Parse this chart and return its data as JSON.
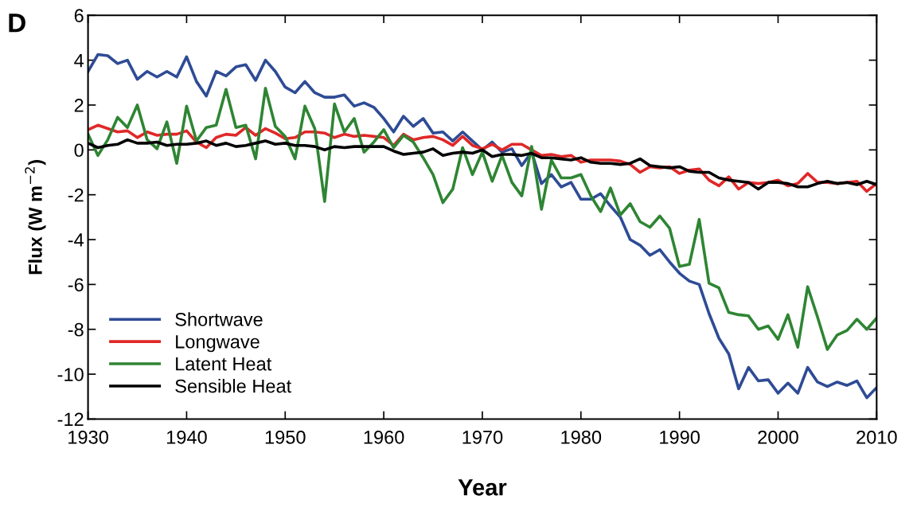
{
  "chart_data": {
    "type": "line",
    "xlabel": "Year",
    "ylabel": "Flux (W m$^{−2}$)",
    "annotations": [
      "D"
    ],
    "x": [
      1930,
      1931,
      1932,
      1933,
      1934,
      1935,
      1936,
      1937,
      1938,
      1939,
      1940,
      1941,
      1942,
      1943,
      1944,
      1945,
      1946,
      1947,
      1948,
      1949,
      1950,
      1951,
      1952,
      1953,
      1954,
      1955,
      1956,
      1957,
      1958,
      1959,
      1960,
      1961,
      1962,
      1963,
      1964,
      1965,
      1966,
      1967,
      1968,
      1969,
      1970,
      1971,
      1972,
      1973,
      1974,
      1975,
      1976,
      1977,
      1978,
      1979,
      1980,
      1981,
      1982,
      1983,
      1984,
      1985,
      1986,
      1987,
      1988,
      1989,
      1990,
      1991,
      1992,
      1993,
      1994,
      1995,
      1996,
      1997,
      1998,
      1999,
      2000,
      2001,
      2002,
      2003,
      2004,
      2005,
      2006,
      2007,
      2008,
      2009,
      2010
    ],
    "series": [
      {
        "name": "Shortwave",
        "color": "#2e4b95",
        "values": [
          3.5,
          4.25,
          4.2,
          3.85,
          4.0,
          3.15,
          3.5,
          3.25,
          3.5,
          3.25,
          4.15,
          3.05,
          2.4,
          3.5,
          3.3,
          3.7,
          3.8,
          3.1,
          4.0,
          3.5,
          2.8,
          2.55,
          3.05,
          2.55,
          2.35,
          2.35,
          2.45,
          1.95,
          2.1,
          1.9,
          1.4,
          0.8,
          1.5,
          1.05,
          1.4,
          0.75,
          0.8,
          0.4,
          0.8,
          0.4,
          0.0,
          0.35,
          -0.1,
          0.05,
          -0.7,
          -0.1,
          -1.5,
          -1.1,
          -1.65,
          -1.45,
          -2.2,
          -2.2,
          -1.95,
          -2.5,
          -3.0,
          -4.0,
          -4.25,
          -4.7,
          -4.45,
          -5.0,
          -5.5,
          -5.85,
          -6.0,
          -7.3,
          -8.4,
          -9.1,
          -10.65,
          -9.7,
          -10.3,
          -10.25,
          -10.85,
          -10.4,
          -10.85,
          -9.7,
          -10.35,
          -10.55,
          -10.35,
          -10.5,
          -10.3,
          -11.05,
          -10.6
        ]
      },
      {
        "name": "Longwave",
        "color": "#e02828",
        "values": [
          0.9,
          1.1,
          0.95,
          0.8,
          0.85,
          0.55,
          0.8,
          0.65,
          0.7,
          0.7,
          0.85,
          0.35,
          0.1,
          0.55,
          0.7,
          0.65,
          1.0,
          0.65,
          0.95,
          0.75,
          0.5,
          0.55,
          0.8,
          0.8,
          0.75,
          0.55,
          0.7,
          0.6,
          0.65,
          0.6,
          0.55,
          0.2,
          0.7,
          0.45,
          0.55,
          0.6,
          0.45,
          0.2,
          0.6,
          0.2,
          0.05,
          0.25,
          0.0,
          0.25,
          0.25,
          0.0,
          -0.25,
          -0.2,
          -0.3,
          -0.25,
          -0.55,
          -0.45,
          -0.45,
          -0.45,
          -0.5,
          -0.65,
          -1.0,
          -0.75,
          -0.8,
          -0.75,
          -1.05,
          -0.9,
          -0.85,
          -1.35,
          -1.6,
          -1.2,
          -1.75,
          -1.45,
          -1.5,
          -1.45,
          -1.35,
          -1.6,
          -1.5,
          -1.05,
          -1.45,
          -1.45,
          -1.5,
          -1.45,
          -1.4,
          -1.85,
          -1.5
        ]
      },
      {
        "name": "Latent Heat",
        "color": "#2e8533",
        "values": [
          0.7,
          -0.25,
          0.45,
          1.45,
          1.0,
          2.0,
          0.45,
          0.05,
          1.25,
          -0.6,
          1.95,
          0.4,
          1.0,
          1.1,
          2.7,
          1.0,
          1.1,
          -0.4,
          2.75,
          1.05,
          0.6,
          -0.4,
          1.95,
          0.95,
          -2.3,
          2.05,
          0.8,
          1.4,
          -0.1,
          0.35,
          0.9,
          0.1,
          0.65,
          0.35,
          -0.35,
          -1.1,
          -2.35,
          -1.75,
          0.1,
          -1.1,
          -0.1,
          -1.4,
          -0.25,
          -1.45,
          -2.05,
          0.15,
          -2.65,
          -0.45,
          -1.25,
          -1.25,
          -1.1,
          -2.05,
          -2.75,
          -1.7,
          -2.9,
          -2.4,
          -3.2,
          -3.45,
          -2.95,
          -3.5,
          -5.2,
          -5.1,
          -3.1,
          -5.95,
          -6.15,
          -7.25,
          -7.35,
          -7.4,
          -8.0,
          -7.85,
          -8.45,
          -7.35,
          -8.8,
          -6.1,
          -7.45,
          -8.9,
          -8.25,
          -8.05,
          -7.55,
          -8.0,
          -7.5
        ]
      },
      {
        "name": "Sensible Heat",
        "color": "#000000",
        "values": [
          0.3,
          0.1,
          0.2,
          0.25,
          0.45,
          0.3,
          0.3,
          0.35,
          0.2,
          0.25,
          0.25,
          0.3,
          0.4,
          0.2,
          0.3,
          0.15,
          0.2,
          0.3,
          0.4,
          0.25,
          0.3,
          0.2,
          0.2,
          0.15,
          0.0,
          0.15,
          0.1,
          0.15,
          0.15,
          0.15,
          0.15,
          -0.05,
          -0.2,
          -0.15,
          -0.1,
          0.05,
          -0.25,
          -0.15,
          -0.1,
          -0.15,
          0.0,
          -0.3,
          -0.2,
          -0.2,
          -0.25,
          -0.15,
          -0.35,
          -0.35,
          -0.4,
          -0.45,
          -0.35,
          -0.55,
          -0.6,
          -0.6,
          -0.65,
          -0.6,
          -0.4,
          -0.7,
          -0.75,
          -0.8,
          -0.75,
          -0.95,
          -1.0,
          -1.0,
          -1.25,
          -1.35,
          -1.4,
          -1.45,
          -1.75,
          -1.45,
          -1.45,
          -1.5,
          -1.65,
          -1.65,
          -1.5,
          -1.4,
          -1.5,
          -1.45,
          -1.55,
          -1.4,
          -1.55
        ]
      }
    ],
    "xlim": [
      1930,
      2010
    ],
    "xticks": [
      1930,
      1940,
      1950,
      1960,
      1970,
      1980,
      1990,
      2000,
      2010
    ],
    "ylim": [
      -12,
      6
    ],
    "yticks": [
      -12,
      -10,
      -8,
      -6,
      -4,
      -2,
      0,
      2,
      4,
      6
    ],
    "grid": false,
    "legend": "bottom left",
    "line_style": "solid",
    "marker": "none"
  }
}
